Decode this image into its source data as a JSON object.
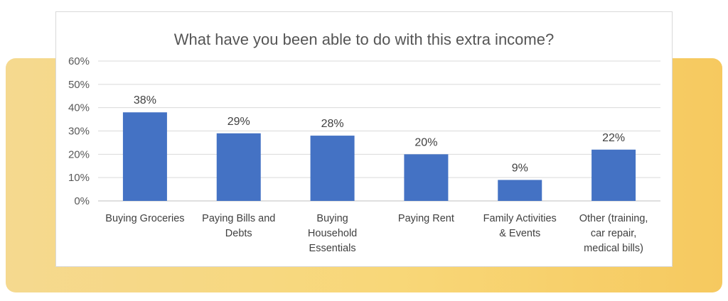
{
  "chart_data": {
    "type": "bar",
    "title": "What have you been able to do with this extra income?",
    "categories": [
      [
        "Buying Groceries"
      ],
      [
        "Paying Bills and",
        "Debts"
      ],
      [
        "Buying",
        "Household",
        "Essentials"
      ],
      [
        "Paying Rent"
      ],
      [
        "Family Activities",
        "& Events"
      ],
      [
        "Other (training,",
        "car repair,",
        "medical bills)"
      ]
    ],
    "values": [
      38,
      29,
      28,
      20,
      9,
      22
    ],
    "data_labels": [
      "38%",
      "29%",
      "28%",
      "20%",
      "9%",
      "22%"
    ],
    "y_ticks": [
      "0%",
      "10%",
      "20%",
      "30%",
      "40%",
      "50%",
      "60%"
    ],
    "ylim": [
      0,
      60
    ],
    "grid": true,
    "bar_color": "#4472c4",
    "xlabel": "",
    "ylabel": ""
  }
}
